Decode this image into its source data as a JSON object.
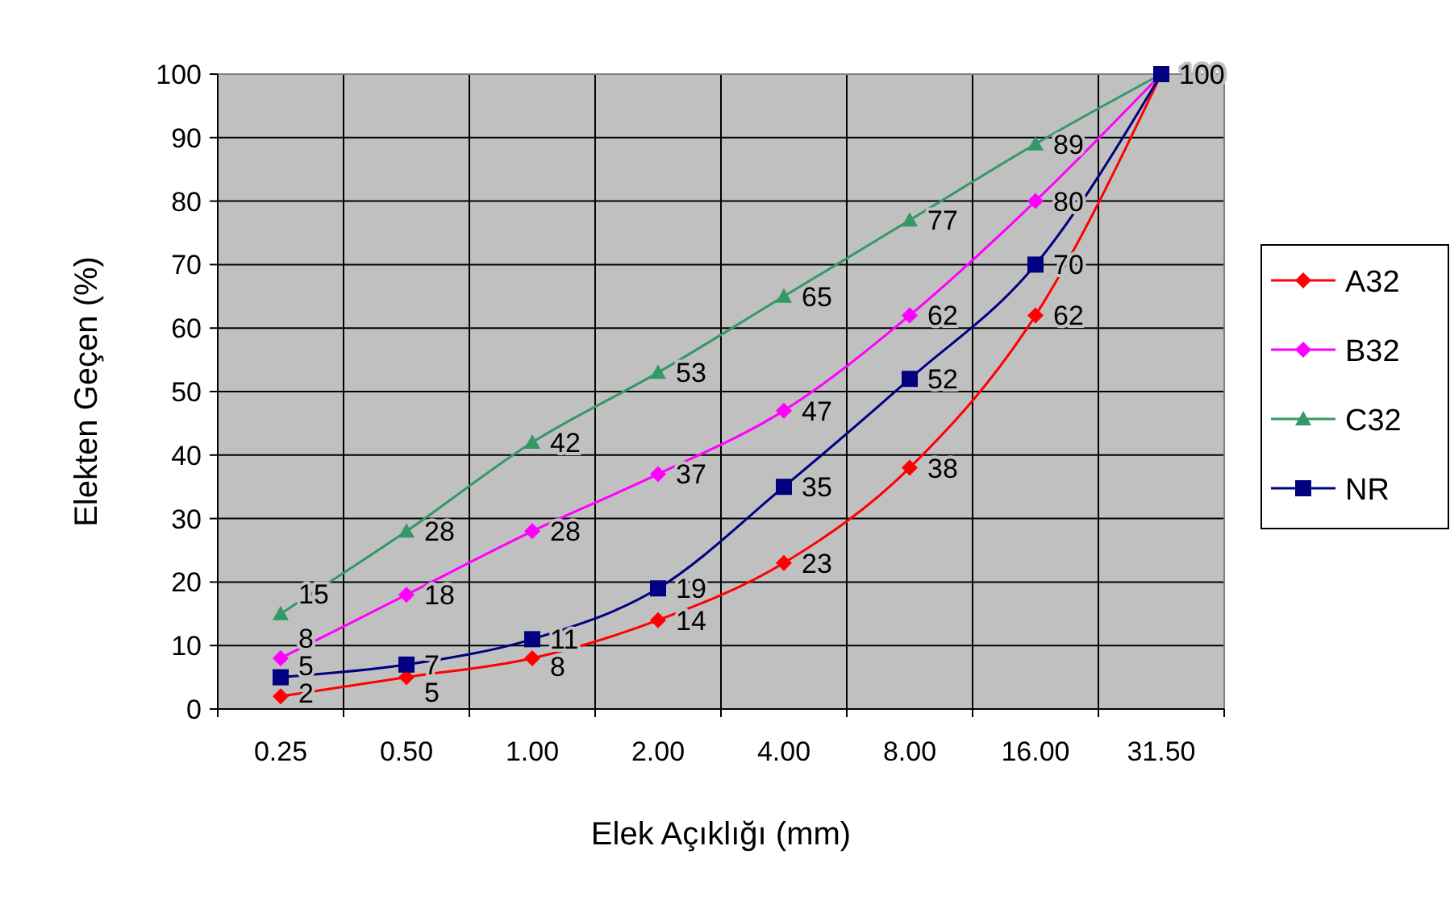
{
  "chart_data": {
    "type": "line",
    "xlabel": "Elek Açıklığı (mm)",
    "ylabel": "Elekten Geçen (%)",
    "categories": [
      "0.25",
      "0.50",
      "1.00",
      "2.00",
      "4.00",
      "8.00",
      "16.00",
      "31.50"
    ],
    "ylim": [
      0,
      100
    ],
    "yticks": [
      0,
      10,
      20,
      30,
      40,
      50,
      60,
      70,
      80,
      90,
      100
    ],
    "grid": true,
    "legend": "right",
    "line_style": "solid",
    "series": [
      {
        "name": "A32",
        "color": "#ff0000",
        "marker": "diamond",
        "values": [
          2,
          5,
          8,
          14,
          23,
          38,
          62,
          100
        ],
        "value_labels": [
          "2",
          "5",
          "8",
          "14",
          "23",
          "38",
          "62",
          null
        ]
      },
      {
        "name": "B32",
        "color": "#ff00ff",
        "marker": "diamond",
        "values": [
          8,
          18,
          28,
          37,
          47,
          62,
          80,
          100
        ],
        "value_labels": [
          "8",
          "18",
          "28",
          "37",
          "47",
          "62",
          "80",
          null
        ]
      },
      {
        "name": "C32",
        "color": "#339966",
        "marker": "triangle",
        "values": [
          15,
          28,
          42,
          53,
          65,
          77,
          89,
          100
        ],
        "value_labels": [
          "15",
          "28",
          "42",
          "53",
          "65",
          "77",
          "89",
          null
        ]
      },
      {
        "name": "NR",
        "color": "#000080",
        "marker": "square",
        "values": [
          5,
          7,
          11,
          19,
          35,
          52,
          70,
          100
        ],
        "value_labels": [
          "5",
          "7",
          "11",
          "19",
          "35",
          "52",
          "70",
          "100"
        ]
      }
    ]
  }
}
